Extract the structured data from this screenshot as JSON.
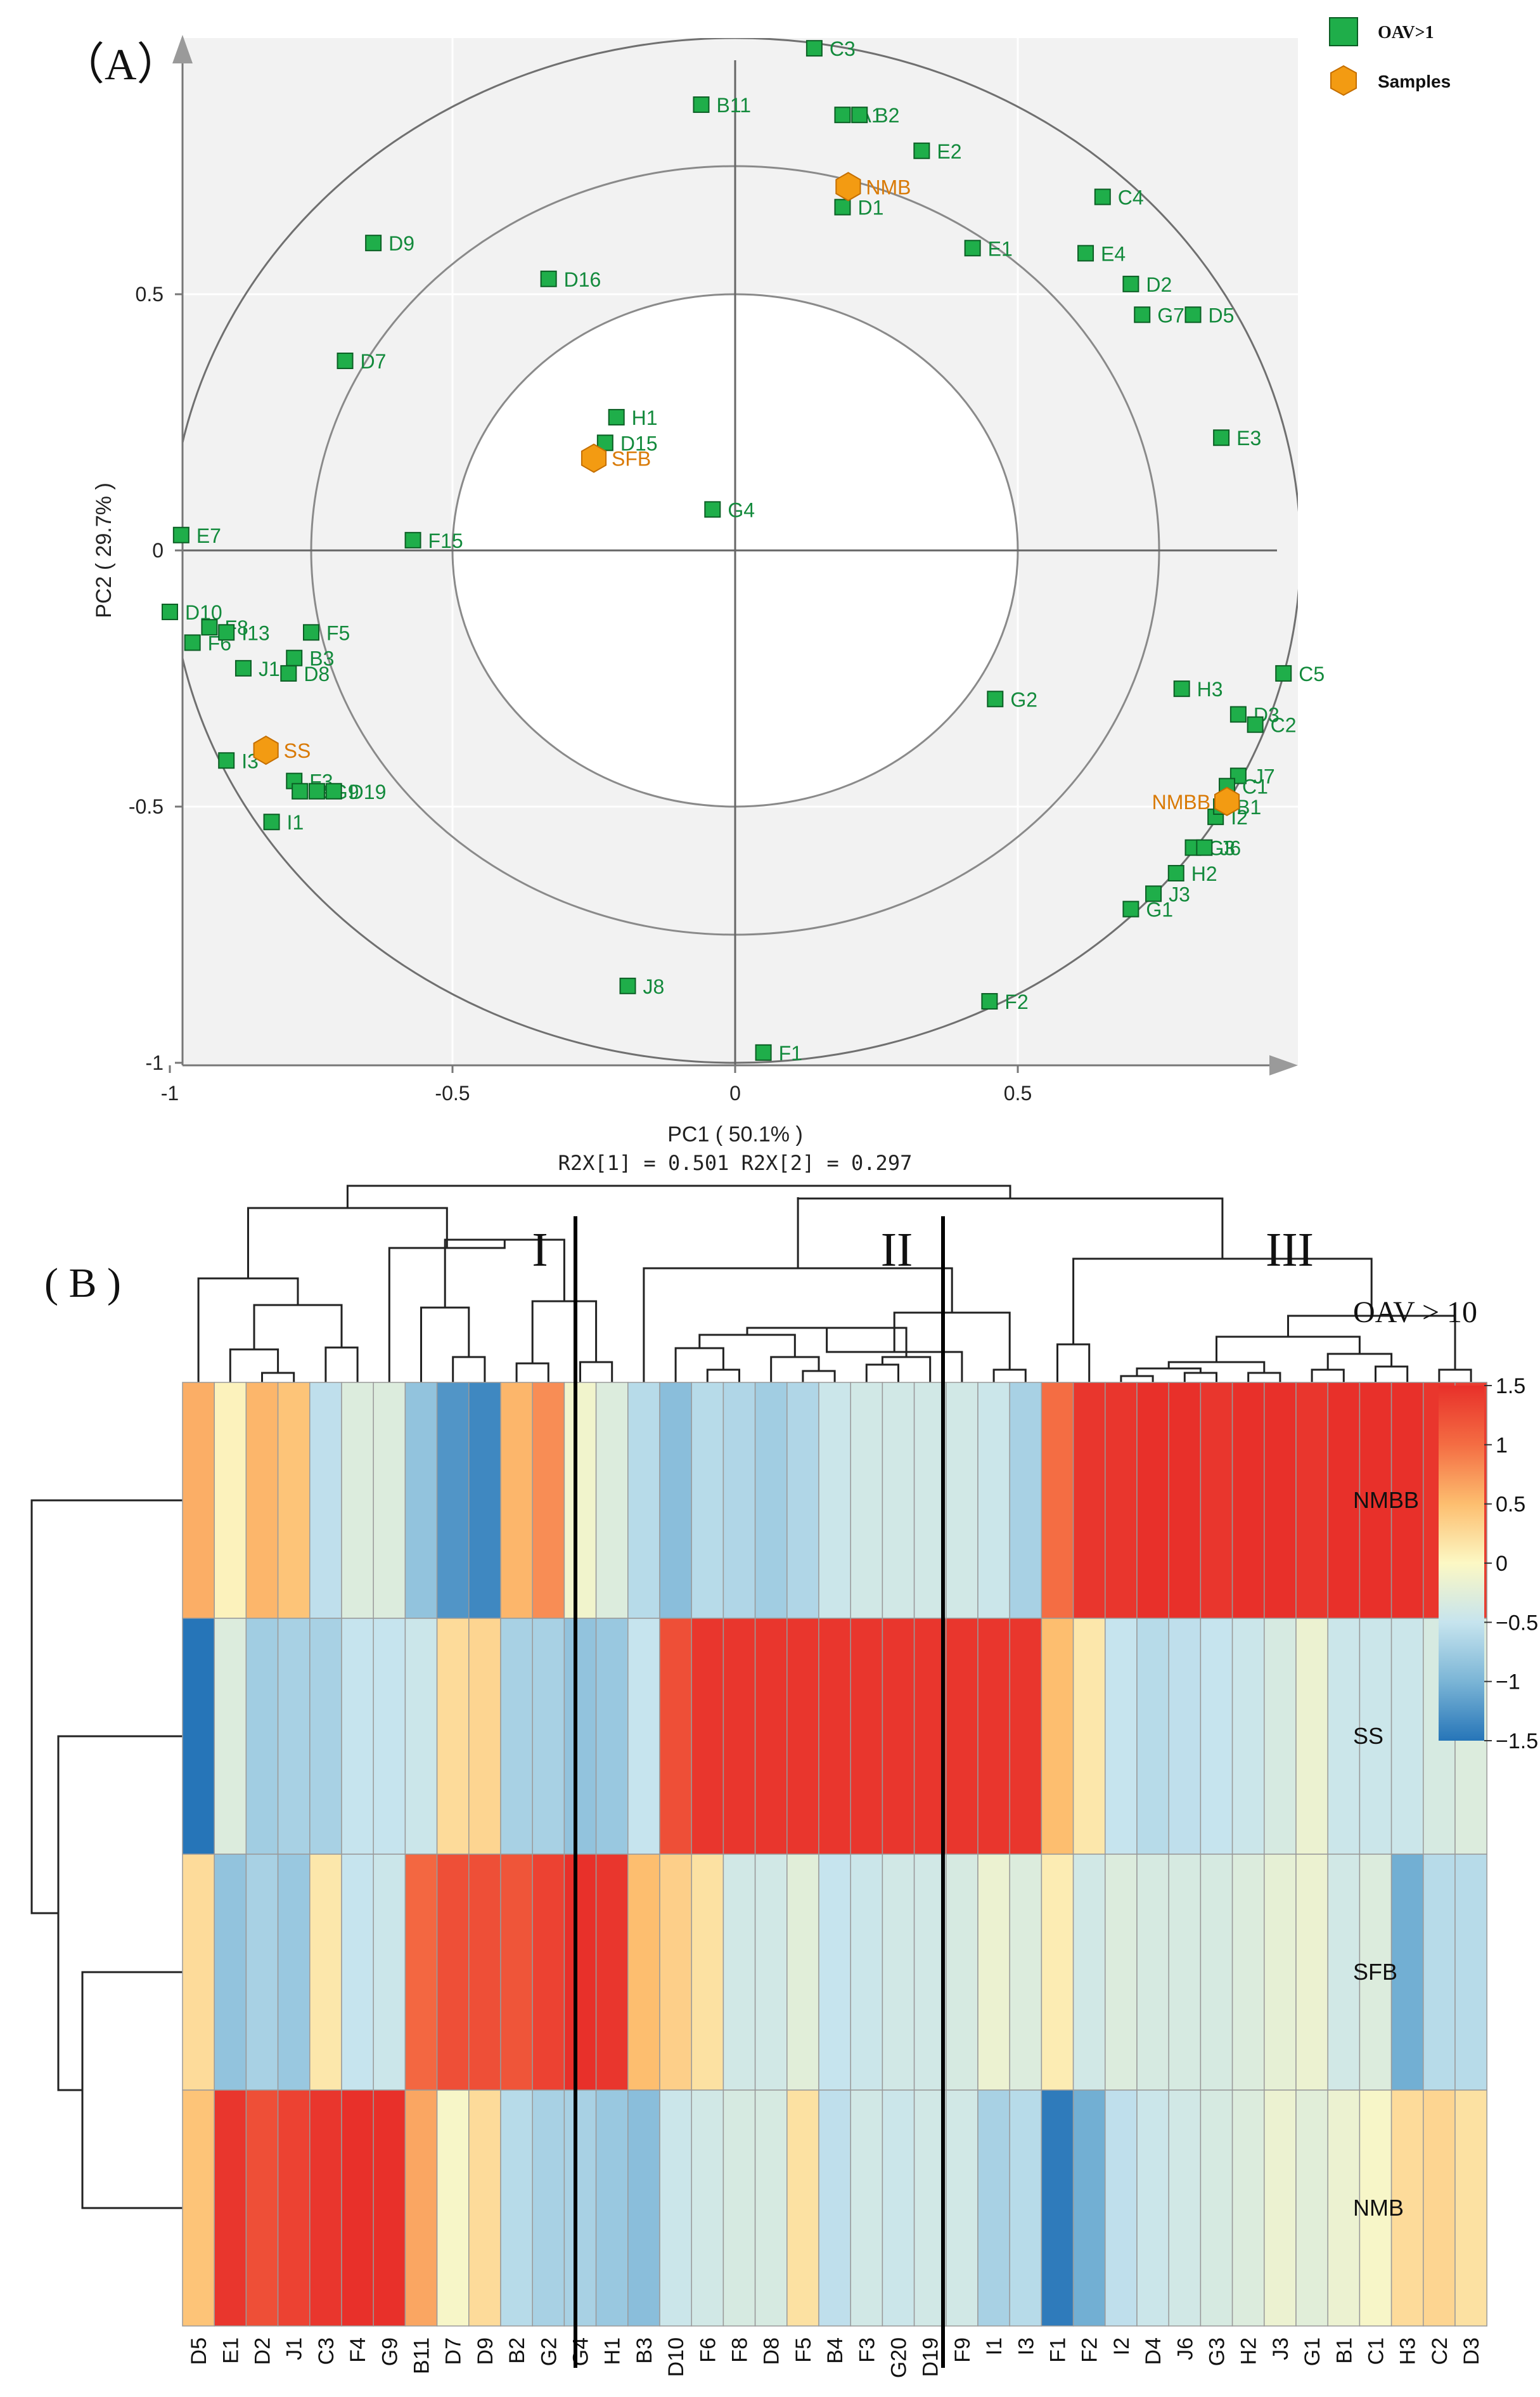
{
  "colors": {
    "oav_point": "#1fae4a",
    "oav_point_edge": "#0b5e24",
    "oav_label": "#138a3c",
    "sample_point": "#f39b12",
    "sample_point_edge": "#c46e00",
    "sample_label": "#d97a06",
    "panel_bg": "#f2f2f2",
    "axis": "#666666",
    "circle": "#707070",
    "arrow": "#9a9a9a"
  },
  "panel_a": {
    "label": "（A）",
    "xlabel": "PC1 ( 50.1% )",
    "ylabel": "PC2 ( 29.7% )",
    "r2x": "R2X[1] = 0.501 R2X[2] = 0.297",
    "legend": [
      {
        "label": "OAV>1",
        "icon": "square-icon"
      },
      {
        "label": "Samples",
        "icon": "hexagon-icon"
      }
    ]
  },
  "panel_b": {
    "label": "( B )",
    "cluster_labels": [
      "I",
      "II",
      "III"
    ],
    "colorbar_title": "OAV  > 10",
    "colorbar_ticks": [
      "1.5",
      "1",
      "0.5",
      "0",
      "−0.5",
      "−1",
      "−1.5"
    ],
    "colorbar_range": [
      -1.5,
      1.5
    ]
  },
  "chart_data": [
    {
      "type": "scatter",
      "title": "",
      "xlabel": "PC1 ( 50.1% )",
      "ylabel": "PC2 ( 29.7% )",
      "xlim": [
        -1,
        1
      ],
      "ylim": [
        -1,
        1
      ],
      "xticks": [
        "-1",
        "-0.5",
        "0",
        "0.5"
      ],
      "yticks": [
        "-1",
        "-0.5",
        "0",
        "0.5"
      ],
      "circles_r": [
        0.5,
        0.75,
        1.0
      ],
      "series": [
        {
          "name": "OAV>1",
          "points": [
            {
              "label": "C3",
              "x": 0.14,
              "y": 0.98
            },
            {
              "label": "B11",
              "x": -0.06,
              "y": 0.87
            },
            {
              "label": "A1",
              "x": 0.19,
              "y": 0.85
            },
            {
              "label": "B2",
              "x": 0.22,
              "y": 0.85
            },
            {
              "label": "E2",
              "x": 0.33,
              "y": 0.78
            },
            {
              "label": "D1",
              "x": 0.19,
              "y": 0.67
            },
            {
              "label": "C4",
              "x": 0.65,
              "y": 0.69
            },
            {
              "label": "D9",
              "x": -0.64,
              "y": 0.6
            },
            {
              "label": "E1",
              "x": 0.42,
              "y": 0.59
            },
            {
              "label": "E4",
              "x": 0.62,
              "y": 0.58
            },
            {
              "label": "D16",
              "x": -0.33,
              "y": 0.53
            },
            {
              "label": "D2",
              "x": 0.7,
              "y": 0.52
            },
            {
              "label": "G7",
              "x": 0.72,
              "y": 0.46
            },
            {
              "label": "D5",
              "x": 0.81,
              "y": 0.46
            },
            {
              "label": "D7",
              "x": -0.69,
              "y": 0.37
            },
            {
              "label": "H1",
              "x": -0.21,
              "y": 0.26
            },
            {
              "label": "E3",
              "x": 0.86,
              "y": 0.22
            },
            {
              "label": "D15",
              "x": -0.23,
              "y": 0.21
            },
            {
              "label": "G4",
              "x": -0.04,
              "y": 0.08
            },
            {
              "label": "E7",
              "x": -0.98,
              "y": 0.03
            },
            {
              "label": "F15",
              "x": -0.57,
              "y": 0.02
            },
            {
              "label": "D10",
              "x": -1.0,
              "y": -0.12
            },
            {
              "label": "F6",
              "x": -0.96,
              "y": -0.18
            },
            {
              "label": "F8",
              "x": -0.93,
              "y": -0.15
            },
            {
              "label": "I13",
              "x": -0.9,
              "y": -0.16
            },
            {
              "label": "F5",
              "x": -0.75,
              "y": -0.16
            },
            {
              "label": "J1",
              "x": -0.87,
              "y": -0.23
            },
            {
              "label": "B3",
              "x": -0.78,
              "y": -0.21
            },
            {
              "label": "D8",
              "x": -0.79,
              "y": -0.24
            },
            {
              "label": "C5",
              "x": 0.97,
              "y": -0.24
            },
            {
              "label": "H3",
              "x": 0.79,
              "y": -0.27
            },
            {
              "label": "G2",
              "x": 0.46,
              "y": -0.29
            },
            {
              "label": "D3",
              "x": 0.89,
              "y": -0.32
            },
            {
              "label": "C2",
              "x": 0.92,
              "y": -0.34
            },
            {
              "label": "I3",
              "x": -0.9,
              "y": -0.41
            },
            {
              "label": "J7",
              "x": 0.89,
              "y": -0.44
            },
            {
              "label": "C1",
              "x": 0.87,
              "y": -0.46
            },
            {
              "label": "F3",
              "x": -0.78,
              "y": -0.45
            },
            {
              "label": "B4",
              "x": -0.77,
              "y": -0.47
            },
            {
              "label": "G9",
              "x": -0.74,
              "y": -0.47
            },
            {
              "label": "D19",
              "x": -0.71,
              "y": -0.47
            },
            {
              "label": "I2",
              "x": 0.85,
              "y": -0.52
            },
            {
              "label": "B1",
              "x": 0.86,
              "y": -0.5
            },
            {
              "label": "I1",
              "x": -0.82,
              "y": -0.53
            },
            {
              "label": "G3",
              "x": 0.81,
              "y": -0.58
            },
            {
              "label": "J6",
              "x": 0.83,
              "y": -0.58
            },
            {
              "label": "H2",
              "x": 0.78,
              "y": -0.63
            },
            {
              "label": "J3",
              "x": 0.74,
              "y": -0.67
            },
            {
              "label": "G1",
              "x": 0.7,
              "y": -0.7
            },
            {
              "label": "J8",
              "x": -0.19,
              "y": -0.85
            },
            {
              "label": "F2",
              "x": 0.45,
              "y": -0.88
            },
            {
              "label": "F1",
              "x": 0.05,
              "y": -0.98
            }
          ]
        },
        {
          "name": "Samples",
          "points": [
            {
              "label": "NMB",
              "x": 0.2,
              "y": 0.71
            },
            {
              "label": "SFB",
              "x": -0.25,
              "y": 0.18
            },
            {
              "label": "SS",
              "x": -0.83,
              "y": -0.39
            },
            {
              "label": "NMBB",
              "x": 0.87,
              "y": -0.49
            }
          ]
        }
      ]
    },
    {
      "type": "heatmap",
      "title": "OAV  > 10",
      "rows": [
        "NMBB",
        "SS",
        "SFB",
        "NMB"
      ],
      "columns": [
        "D5",
        "E1",
        "D2",
        "J1",
        "C3",
        "F4",
        "G9",
        "B11",
        "D7",
        "D9",
        "B2",
        "G2",
        "G4",
        "H1",
        "B3",
        "D10",
        "F6",
        "F8",
        "D8",
        "F5",
        "B4",
        "F3",
        "G20",
        "D19",
        "F9",
        "I1",
        "I3",
        "F1",
        "F2",
        "I2",
        "D4",
        "J6",
        "G3",
        "H2",
        "J3",
        "G1",
        "B1",
        "C1",
        "H3",
        "C2",
        "D3"
      ],
      "clusters": [
        {
          "name": "I",
          "start": 0,
          "end": 13
        },
        {
          "name": "II",
          "start": 14,
          "end": 26
        },
        {
          "name": "III",
          "start": 27,
          "end": 40
        }
      ],
      "values": [
        [
          0.6,
          0.05,
          0.55,
          0.45,
          -0.55,
          -0.3,
          -0.3,
          -0.85,
          -1.25,
          -1.35,
          0.55,
          0.8,
          -0.1,
          -0.3,
          -0.6,
          -0.9,
          -0.6,
          -0.65,
          -0.75,
          -0.65,
          -0.45,
          -0.4,
          -0.4,
          -0.4,
          -0.4,
          -0.45,
          -0.7,
          1.0,
          1.45,
          1.45,
          1.5,
          1.5,
          1.45,
          1.5,
          1.5,
          1.45,
          1.5,
          1.5,
          1.5,
          1.45,
          1.4
        ],
        [
          -1.5,
          -0.3,
          -0.75,
          -0.7,
          -0.7,
          -0.5,
          -0.5,
          -0.45,
          0.25,
          0.3,
          -0.7,
          -0.7,
          -0.85,
          -0.8,
          -0.5,
          1.25,
          1.45,
          1.45,
          1.45,
          1.45,
          1.45,
          1.45,
          1.45,
          1.45,
          1.45,
          1.45,
          1.45,
          0.5,
          0.15,
          -0.5,
          -0.6,
          -0.55,
          -0.5,
          -0.45,
          -0.35,
          -0.15,
          -0.45,
          -0.45,
          -0.45,
          -0.35,
          -0.3
        ],
        [
          0.25,
          -0.85,
          -0.7,
          -0.8,
          0.15,
          -0.5,
          -0.45,
          1.05,
          1.25,
          1.25,
          1.2,
          1.35,
          1.5,
          1.45,
          0.5,
          0.35,
          0.2,
          -0.4,
          -0.4,
          -0.25,
          -0.5,
          -0.45,
          -0.4,
          -0.4,
          -0.35,
          -0.15,
          -0.3,
          0.1,
          -0.4,
          -0.3,
          -0.35,
          -0.35,
          -0.35,
          -0.3,
          -0.2,
          -0.15,
          -0.4,
          -0.3,
          -1.05,
          -0.6,
          -0.6
        ],
        [
          0.45,
          1.45,
          1.25,
          1.35,
          1.45,
          1.5,
          1.5,
          0.65,
          -0.05,
          0.25,
          -0.6,
          -0.7,
          -0.7,
          -0.8,
          -0.9,
          -0.45,
          -0.4,
          -0.35,
          -0.35,
          0.2,
          -0.55,
          -0.4,
          -0.45,
          -0.4,
          -0.4,
          -0.7,
          -0.6,
          -1.45,
          -1.05,
          -0.55,
          -0.45,
          -0.4,
          -0.35,
          -0.3,
          -0.15,
          -0.25,
          -0.15,
          -0.05,
          0.25,
          0.3,
          0.2
        ]
      ]
    }
  ]
}
